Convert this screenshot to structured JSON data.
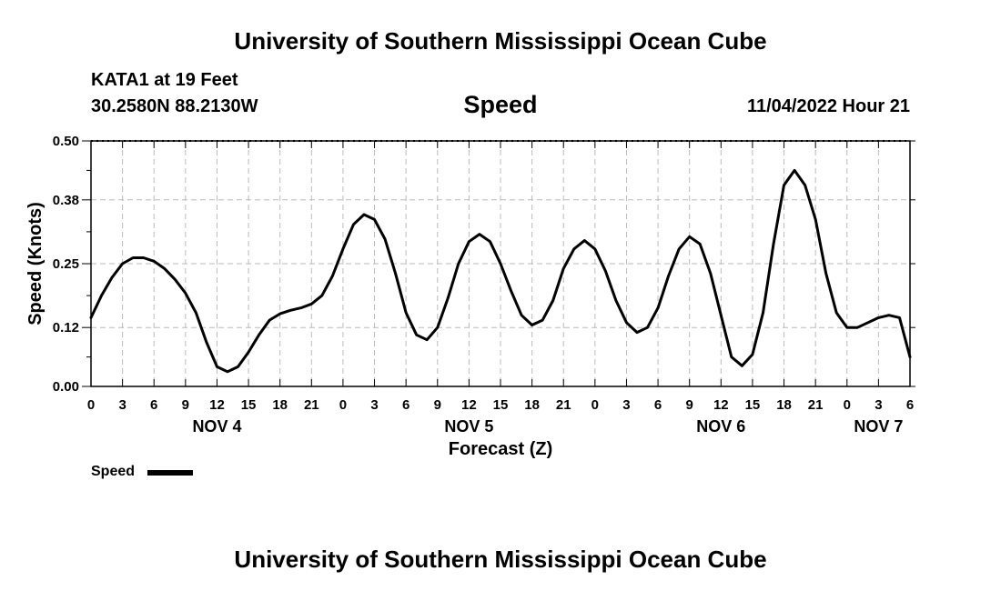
{
  "header": {
    "title": "University of Southern Mississippi Ocean Cube",
    "station": "KATA1 at 19 Feet",
    "coords": "30.2580N  88.2130W",
    "chart_title": "Speed",
    "datetime": "11/04/2022 Hour 21"
  },
  "footer": {
    "title": "University of Southern Mississippi Ocean Cube"
  },
  "legend": {
    "label": "Speed"
  },
  "colors": {
    "line": "#000000",
    "grid": "#bbbbbb"
  },
  "chart_data": {
    "type": "line",
    "title": "Speed",
    "xlabel": "Forecast (Z)",
    "ylabel": "Speed (Knots)",
    "xlim": [
      0,
      78
    ],
    "ylim": [
      0,
      0.5
    ],
    "y_ticks": [
      0.0,
      0.12,
      0.25,
      0.38,
      0.5
    ],
    "y_tick_labels": [
      "0.00",
      "0.12",
      "0.25",
      "0.38",
      "0.50"
    ],
    "x_ticks": [
      0,
      3,
      6,
      9,
      12,
      15,
      18,
      21,
      24,
      27,
      30,
      33,
      36,
      39,
      42,
      45,
      48,
      51,
      54,
      57,
      60,
      63,
      66,
      69,
      72,
      75,
      78
    ],
    "x_tick_labels": [
      "0",
      "3",
      "6",
      "9",
      "12",
      "15",
      "18",
      "21",
      "0",
      "3",
      "6",
      "9",
      "12",
      "15",
      "18",
      "21",
      "0",
      "3",
      "6",
      "9",
      "12",
      "15",
      "18",
      "21",
      "0",
      "3",
      "6"
    ],
    "day_labels": [
      {
        "x": 12,
        "label": "NOV 4"
      },
      {
        "x": 36,
        "label": "NOV 5"
      },
      {
        "x": 60,
        "label": "NOV 6"
      },
      {
        "x": 75,
        "label": "NOV 7"
      }
    ],
    "grid": true,
    "series": [
      {
        "name": "Speed",
        "x": [
          0,
          1,
          2,
          3,
          4,
          5,
          6,
          7,
          8,
          9,
          10,
          11,
          12,
          13,
          14,
          15,
          16,
          17,
          18,
          19,
          20,
          21,
          22,
          23,
          24,
          25,
          26,
          27,
          28,
          29,
          30,
          31,
          32,
          33,
          34,
          35,
          36,
          37,
          38,
          39,
          40,
          41,
          42,
          43,
          44,
          45,
          46,
          47,
          48,
          49,
          50,
          51,
          52,
          53,
          54,
          55,
          56,
          57,
          58,
          59,
          60,
          61,
          62,
          63,
          64,
          65,
          66,
          67,
          68,
          69,
          70,
          71,
          72,
          73,
          74,
          75,
          76,
          77,
          78
        ],
        "y": [
          0.14,
          0.185,
          0.222,
          0.25,
          0.262,
          0.262,
          0.255,
          0.24,
          0.218,
          0.19,
          0.15,
          0.09,
          0.04,
          0.03,
          0.04,
          0.07,
          0.105,
          0.135,
          0.148,
          0.155,
          0.16,
          0.168,
          0.185,
          0.225,
          0.28,
          0.33,
          0.35,
          0.34,
          0.3,
          0.23,
          0.15,
          0.105,
          0.095,
          0.12,
          0.18,
          0.25,
          0.295,
          0.31,
          0.295,
          0.25,
          0.195,
          0.145,
          0.125,
          0.135,
          0.175,
          0.24,
          0.28,
          0.297,
          0.28,
          0.235,
          0.175,
          0.13,
          0.11,
          0.12,
          0.16,
          0.225,
          0.28,
          0.305,
          0.29,
          0.23,
          0.145,
          0.06,
          0.042,
          0.065,
          0.15,
          0.29,
          0.41,
          0.44,
          0.41,
          0.34,
          0.23,
          0.15,
          0.12,
          0.12,
          0.13,
          0.14,
          0.145,
          0.14,
          0.06
        ]
      }
    ]
  }
}
